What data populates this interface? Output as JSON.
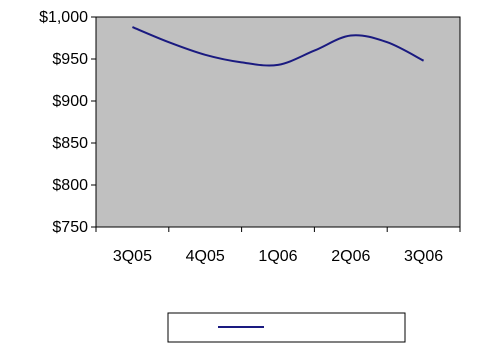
{
  "chart_data": {
    "type": "line",
    "categories": [
      "3Q05",
      "4Q05",
      "1Q06",
      "2Q06",
      "3Q06"
    ],
    "y_tick_labels": [
      "$1,000",
      "$950",
      "$900",
      "$850",
      "$800",
      "$750"
    ],
    "ylim": [
      750,
      1000
    ],
    "grid": false,
    "legend_position": "bottom",
    "series": [
      {
        "color": "#1a1a80",
        "x": [
          0,
          0.5,
          1,
          1.5,
          2,
          2.5,
          3,
          3.5,
          4
        ],
        "values": [
          988,
          970,
          955,
          946,
          943,
          960,
          978,
          970,
          948
        ]
      }
    ],
    "colors": {
      "plot_background": "#c0c0c0",
      "line": "#1a1a80"
    }
  }
}
